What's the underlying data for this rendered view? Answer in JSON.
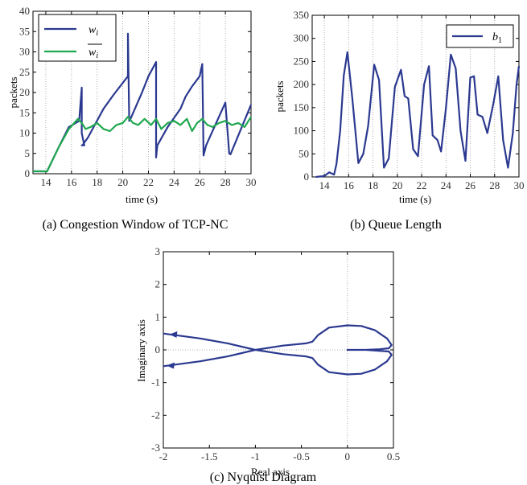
{
  "chart_data": [
    {
      "type": "line",
      "caption": "(a) Congestion Window of TCP-NC",
      "xlabel": "time (s)",
      "ylabel": "packets",
      "xlim": [
        13,
        30
      ],
      "ylim": [
        0,
        40
      ],
      "xticks": [
        14,
        16,
        18,
        20,
        22,
        24,
        26,
        28,
        30
      ],
      "yticks": [
        0,
        5,
        10,
        15,
        20,
        25,
        30,
        35,
        40
      ],
      "grid": "vertical-dotted",
      "legend": "top-left",
      "colors": {
        "w_i": "#2b3990",
        "w_i_bar": "#1fa84f"
      },
      "series": [
        {
          "name": "w_i",
          "x": [
            13,
            14.1,
            15,
            15.8,
            16.6,
            16.8,
            16.8,
            17.0,
            16.8,
            16.85,
            17.3,
            18.5,
            19.3,
            20.4,
            20.4,
            20.5,
            20.6,
            21.5,
            22.0,
            22.6,
            22.6,
            22.7,
            23.5,
            24.5,
            24.9,
            25.4,
            26.0,
            26.2,
            26.3,
            26.3,
            26.5,
            28.0,
            28.3,
            28.4,
            30
          ],
          "y": [
            0.6,
            0.6,
            6.5,
            11.5,
            13.0,
            21.2,
            10.0,
            7.0,
            7.0,
            7.0,
            9.0,
            16.0,
            19.5,
            24.0,
            34.5,
            13.0,
            13.5,
            20.0,
            24.0,
            27.5,
            4.0,
            7.0,
            11.5,
            16.0,
            19.0,
            21.5,
            24.0,
            27.0,
            4.5,
            4.5,
            7.0,
            17.5,
            5.0,
            4.8,
            17.0
          ]
        },
        {
          "name": "w_i_bar",
          "x": [
            13,
            14.1,
            15,
            15.8,
            16.5,
            16.8,
            17.1,
            17.5,
            18.0,
            18.5,
            19.0,
            19.5,
            20.0,
            20.4,
            20.8,
            21.2,
            21.7,
            22.2,
            22.6,
            23.0,
            23.5,
            24.0,
            24.5,
            25.0,
            25.4,
            25.8,
            26.2,
            26.6,
            27.0,
            27.5,
            28.0,
            28.5,
            29.0,
            29.5,
            30
          ],
          "y": [
            0.6,
            0.6,
            6.5,
            11.0,
            13.5,
            12.5,
            11.0,
            11.5,
            12.5,
            11.0,
            10.5,
            12.0,
            12.5,
            14.0,
            12.5,
            12.0,
            13.5,
            12.0,
            13.5,
            11.0,
            12.5,
            13.0,
            12.0,
            13.5,
            10.5,
            12.5,
            13.5,
            12.0,
            11.5,
            12.5,
            13.0,
            12.0,
            12.5,
            11.5,
            14.0
          ]
        }
      ]
    },
    {
      "type": "line",
      "caption": "(b) Queue Length",
      "xlabel": "time (s)",
      "ylabel": "packets",
      "xlim": [
        13,
        30
      ],
      "ylim": [
        0,
        350
      ],
      "xticks": [
        14,
        16,
        18,
        20,
        22,
        24,
        26,
        28,
        30
      ],
      "yticks": [
        0,
        50,
        100,
        150,
        200,
        250,
        300,
        350
      ],
      "grid": "vertical-dotted",
      "legend": "top-right",
      "colors": {
        "b_1": "#2b3990"
      },
      "series": [
        {
          "name": "b_1",
          "x": [
            13.3,
            14.0,
            14.4,
            14.8,
            15.0,
            15.3,
            15.6,
            15.9,
            16.3,
            16.8,
            17.2,
            17.6,
            18.1,
            18.5,
            18.9,
            19.3,
            19.8,
            20.3,
            20.6,
            20.9,
            21.3,
            21.7,
            22.2,
            22.6,
            22.9,
            23.3,
            23.6,
            24.0,
            24.4,
            24.8,
            25.2,
            25.6,
            26.0,
            26.3,
            26.6,
            27.0,
            27.4,
            27.9,
            28.3,
            28.7,
            29.1,
            29.5,
            29.8,
            30.0
          ],
          "y": [
            0,
            2,
            10,
            5,
            28,
            100,
            220,
            270,
            170,
            30,
            50,
            110,
            243,
            210,
            20,
            40,
            195,
            232,
            175,
            170,
            60,
            45,
            200,
            240,
            90,
            80,
            55,
            150,
            265,
            235,
            100,
            35,
            215,
            218,
            135,
            130,
            95,
            160,
            218,
            80,
            20,
            95,
            200,
            240
          ]
        }
      ]
    },
    {
      "type": "line",
      "caption": "(c) Nyquist Diagram",
      "xlabel": "Real axis",
      "ylabel": "Imaginary axis",
      "xlim": [
        -2,
        0.5
      ],
      "ylim": [
        -3,
        3
      ],
      "xticks": [
        -2,
        -1.5,
        -1,
        -0.5,
        0,
        0.5
      ],
      "yticks": [
        -3,
        -2,
        -1,
        0,
        1,
        2,
        3
      ],
      "grid": "dotted-zero-lines",
      "colors": {
        "curve": "#2b3990"
      },
      "series": [
        {
          "name": "",
          "x": [
            -2.0,
            -1.6,
            -1.3,
            -1.0,
            -0.7,
            -0.45,
            -0.38,
            -0.32,
            -0.2,
            0.0,
            0.15,
            0.3,
            0.43,
            0.48,
            0.45,
            0.35,
            0.2,
            0.05,
            0.0,
            0.2,
            0.45,
            0.48,
            0.43,
            0.3,
            0.15,
            0.0,
            -0.2,
            -0.32,
            -0.38,
            -0.45,
            -0.7,
            -1.0,
            -1.3,
            -1.6,
            -2.0
          ],
          "y": [
            -0.5,
            -0.35,
            -0.2,
            0.0,
            0.13,
            0.2,
            0.25,
            0.45,
            0.68,
            0.75,
            0.73,
            0.6,
            0.35,
            0.15,
            0.05,
            0.02,
            0.0,
            0.0,
            0.0,
            0.0,
            -0.05,
            -0.15,
            -0.35,
            -0.6,
            -0.73,
            -0.75,
            -0.68,
            -0.45,
            -0.25,
            -0.2,
            -0.13,
            0.0,
            0.2,
            0.35,
            0.5
          ]
        }
      ]
    }
  ]
}
